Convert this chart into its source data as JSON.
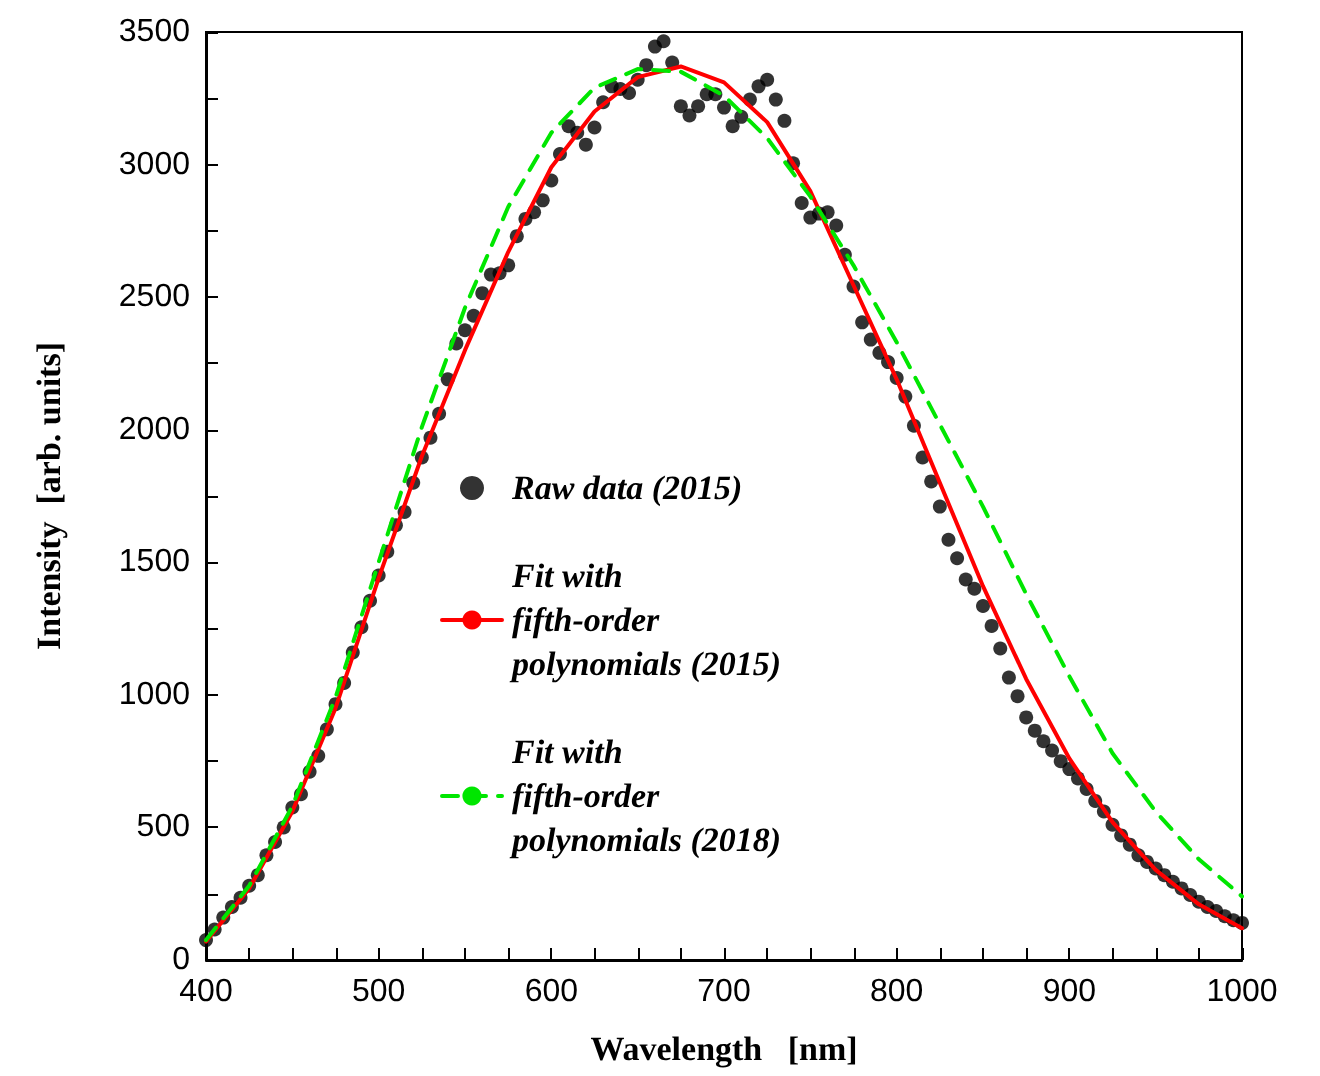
{
  "chart_data": {
    "type": "line",
    "xlabel": "Wavelength   [nm]",
    "ylabel": "Intensity  [arb. units]",
    "xlim": [
      400,
      1000
    ],
    "ylim": [
      0,
      3500
    ],
    "xticks": [
      400,
      {
        "value": 425,
        "label": null
      },
      {
        "value": 450,
        "label": null
      },
      {
        "value": 475,
        "label": null
      },
      500,
      {
        "value": 525,
        "label": null
      },
      {
        "value": 550,
        "label": null
      },
      {
        "value": 575,
        "label": null
      },
      600,
      {
        "value": 625,
        "label": null
      },
      {
        "value": 650,
        "label": null
      },
      {
        "value": 675,
        "label": null
      },
      700,
      {
        "value": 725,
        "label": null
      },
      {
        "value": 750,
        "label": null
      },
      {
        "value": 775,
        "label": null
      },
      800,
      {
        "value": 825,
        "label": null
      },
      {
        "value": 850,
        "label": null
      },
      {
        "value": 875,
        "label": null
      },
      900,
      {
        "value": 925,
        "label": null
      },
      {
        "value": 950,
        "label": null
      },
      {
        "value": 975,
        "label": null
      },
      1000
    ],
    "yticks": [
      0,
      {
        "value": 250,
        "label": null
      },
      500,
      {
        "value": 750,
        "label": null
      },
      1000,
      {
        "value": 1250,
        "label": null
      },
      1500,
      {
        "value": 1750,
        "label": null
      },
      2000,
      {
        "value": 2250,
        "label": null
      },
      2500,
      {
        "value": 2750,
        "label": null
      },
      3000,
      {
        "value": 3250,
        "label": null
      },
      3500
    ],
    "grid": false,
    "legend": "left",
    "series": [
      {
        "name": "Raw data (2015)",
        "type": "scatter",
        "marker": "circle",
        "color": "#000000",
        "x": [
          400,
          405,
          410,
          415,
          420,
          425,
          430,
          435,
          440,
          445,
          450,
          455,
          460,
          465,
          470,
          475,
          480,
          485,
          490,
          495,
          500,
          505,
          510,
          515,
          520,
          525,
          530,
          535,
          540,
          545,
          550,
          555,
          560,
          565,
          570,
          575,
          580,
          585,
          590,
          595,
          600,
          605,
          610,
          615,
          620,
          625,
          630,
          635,
          640,
          645,
          650,
          655,
          660,
          665,
          670,
          675,
          680,
          685,
          690,
          695,
          700,
          705,
          710,
          715,
          720,
          725,
          730,
          735,
          740,
          745,
          750,
          755,
          760,
          765,
          770,
          775,
          780,
          785,
          790,
          795,
          800,
          805,
          810,
          815,
          820,
          825,
          830,
          835,
          840,
          845,
          850,
          855,
          860,
          865,
          870,
          875,
          880,
          885,
          890,
          895,
          900,
          905,
          910,
          915,
          920,
          925,
          930,
          935,
          940,
          945,
          950,
          955,
          960,
          965,
          970,
          975,
          980,
          985,
          990,
          995,
          1000
        ],
        "values": [
          75,
          115,
          160,
          200,
          235,
          280,
          320,
          395,
          445,
          500,
          575,
          625,
          710,
          770,
          870,
          965,
          1045,
          1160,
          1255,
          1355,
          1450,
          1540,
          1640,
          1690,
          1800,
          1895,
          1970,
          2060,
          2190,
          2325,
          2375,
          2430,
          2515,
          2585,
          2590,
          2620,
          2730,
          2795,
          2820,
          2865,
          2940,
          3040,
          3145,
          3120,
          3075,
          3140,
          3235,
          3295,
          3285,
          3270,
          3320,
          3375,
          3445,
          3465,
          3385,
          3220,
          3185,
          3220,
          3265,
          3265,
          3215,
          3145,
          3180,
          3245,
          3295,
          3320,
          3245,
          3165,
          3005,
          2855,
          2800,
          2815,
          2820,
          2770,
          2660,
          2540,
          2405,
          2340,
          2290,
          2255,
          2195,
          2125,
          2015,
          1895,
          1805,
          1710,
          1585,
          1515,
          1435,
          1400,
          1335,
          1260,
          1175,
          1065,
          995,
          915,
          865,
          825,
          790,
          750,
          720,
          685,
          645,
          600,
          560,
          510,
          470,
          435,
          395,
          370,
          345,
          320,
          295,
          270,
          245,
          220,
          200,
          185,
          165,
          150,
          140
        ]
      },
      {
        "name": "Fit with\nfifth-order\npolynomials (2015)",
        "marker": "none",
        "line_style": "solid",
        "color": "#ff0000",
        "x": [
          400,
          425,
          450,
          475,
          500,
          525,
          550,
          575,
          600,
          625,
          650,
          675,
          700,
          725,
          750,
          775,
          800,
          825,
          850,
          875,
          900,
          925,
          950,
          975,
          1000
        ],
        "values": [
          70,
          270,
          560,
          950,
          1440,
          1900,
          2300,
          2670,
          2990,
          3200,
          3330,
          3370,
          3310,
          3160,
          2900,
          2545,
          2190,
          1800,
          1410,
          1060,
          760,
          520,
          340,
          210,
          120
        ]
      },
      {
        "name": "Fit with\nfifth-order\npolynomials (2018)",
        "marker": "none",
        "line_style": "dashed",
        "color": "#00e600",
        "x": [
          400,
          425,
          450,
          475,
          500,
          525,
          550,
          575,
          600,
          625,
          650,
          675,
          700,
          725,
          750,
          775,
          800,
          825,
          850,
          875,
          900,
          925,
          950,
          975,
          1000
        ],
        "values": [
          75,
          280,
          580,
          990,
          1500,
          2010,
          2460,
          2840,
          3120,
          3290,
          3360,
          3350,
          3260,
          3100,
          2880,
          2620,
          2330,
          2020,
          1710,
          1380,
          1070,
          780,
          560,
          380,
          240
        ]
      }
    ]
  }
}
